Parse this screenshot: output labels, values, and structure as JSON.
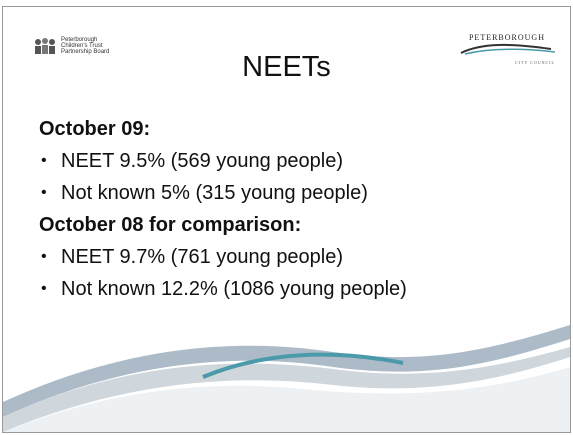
{
  "header": {
    "left_logo": [
      "Peterborough",
      "Children's Trust",
      "Partnership Board"
    ],
    "title": "NEETs",
    "right_logo": {
      "name": "PETERBOROUGH",
      "subtitle": "CITY COUNCIL"
    }
  },
  "sections": [
    {
      "heading": "October 09:",
      "items": [
        "NEET 9.5% (569 young people)",
        "Not known 5% (315 young people)"
      ]
    },
    {
      "heading": "October 08 for comparison:",
      "items": [
        "NEET 9.7% (761 young people)",
        "Not known 12.2% (1086 young people)"
      ]
    }
  ]
}
